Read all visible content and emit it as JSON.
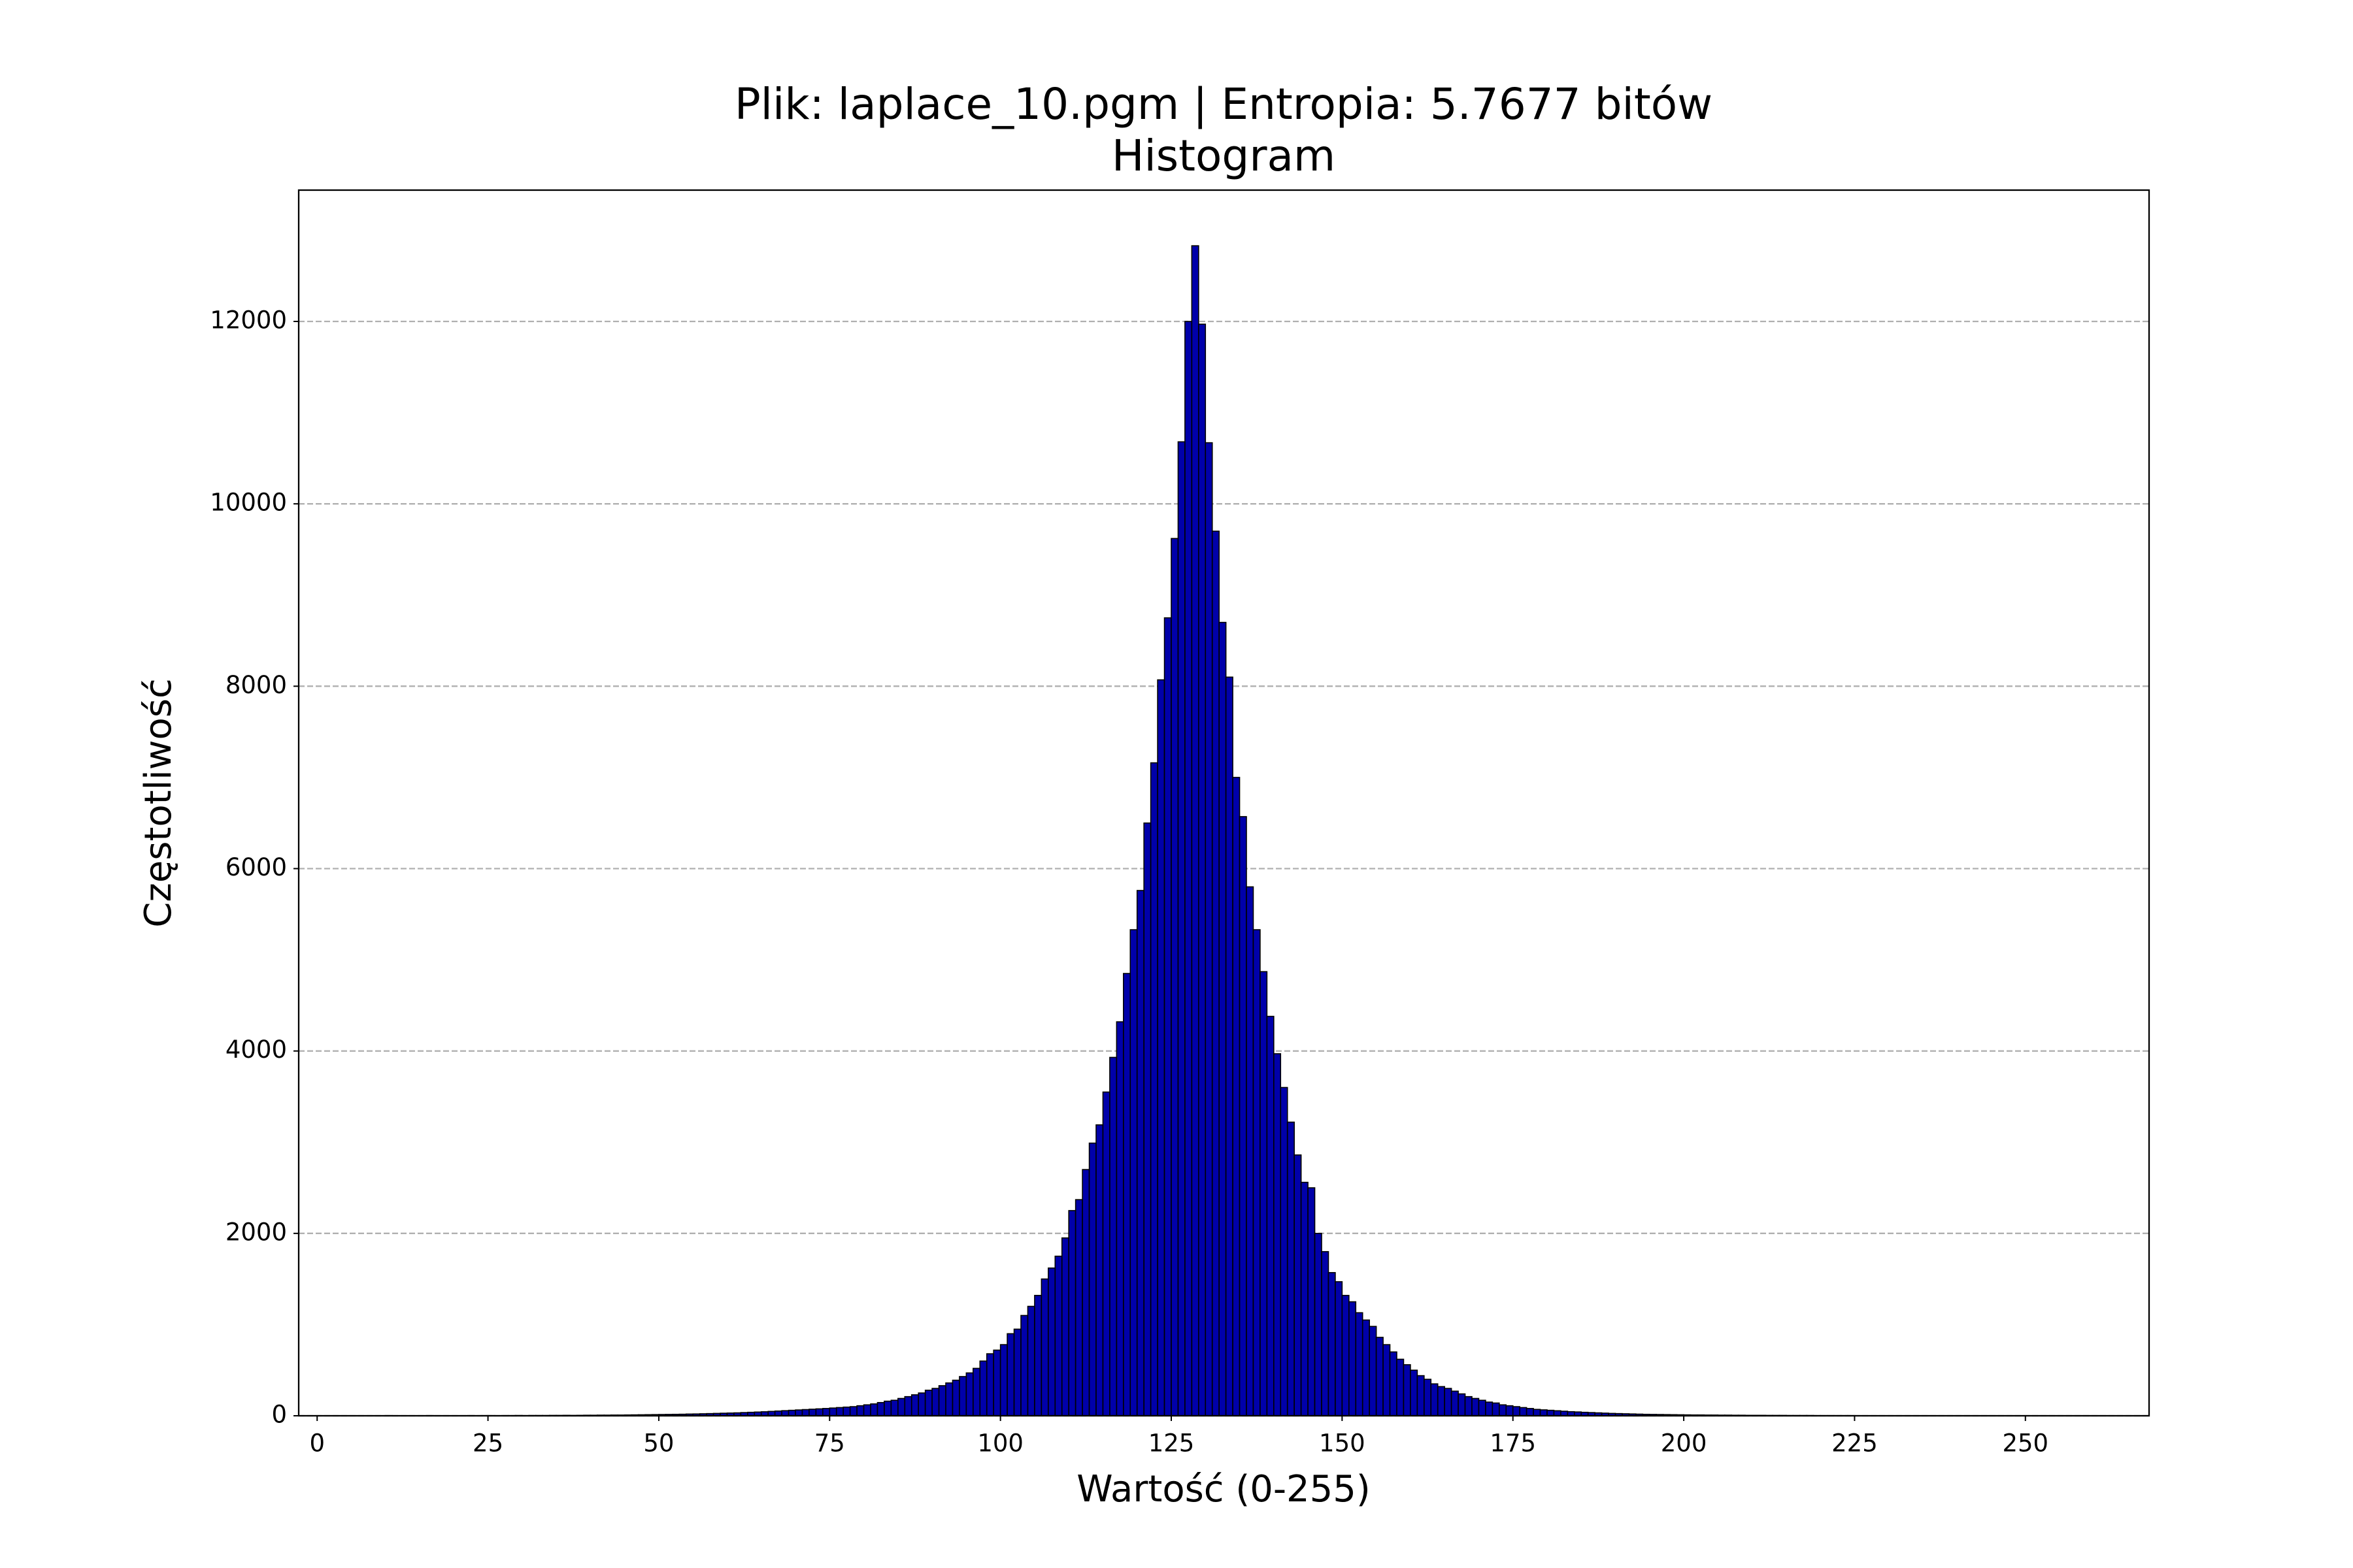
{
  "chart_data": {
    "type": "histogram",
    "title": "Plik: laplace_10.pgm | Entropia: 5.7677 bitów",
    "subtitle": "Histogram",
    "x_label": "Wartość (0-255)",
    "y_label": "Częstotliwość",
    "color": "#0000aa",
    "edgecolor": "#000000",
    "grid": true,
    "bins": [
      0,
      1,
      2,
      3,
      4,
      5,
      6,
      7,
      8,
      9,
      10,
      11,
      12,
      13,
      14,
      15,
      16,
      17,
      18,
      19,
      20,
      21,
      22,
      23,
      24,
      25,
      26,
      27,
      28,
      29,
      30,
      31,
      32,
      33,
      34,
      35,
      36,
      37,
      38,
      39,
      40,
      41,
      42,
      43,
      44,
      45,
      46,
      47,
      48,
      49,
      50,
      51,
      52,
      53,
      54,
      55,
      56,
      57,
      58,
      59,
      60,
      61,
      62,
      63,
      64,
      65,
      66,
      67,
      68,
      69,
      70,
      71,
      72,
      73,
      74,
      75,
      76,
      77,
      78,
      79,
      80,
      81,
      82,
      83,
      84,
      85,
      86,
      87,
      88,
      89,
      90,
      91,
      92,
      93,
      94,
      95,
      96,
      97,
      98,
      99,
      100,
      101,
      102,
      103,
      104,
      105,
      106,
      107,
      108,
      109,
      110,
      111,
      112,
      113,
      114,
      115,
      116,
      117,
      118,
      119,
      120,
      121,
      122,
      123,
      124,
      125,
      126,
      127,
      128,
      129,
      130,
      131,
      132,
      133,
      134,
      135,
      136,
      137,
      138,
      139,
      140,
      141,
      142,
      143,
      144,
      145,
      146,
      147,
      148,
      149,
      150,
      151,
      152,
      153,
      154,
      155,
      156,
      157,
      158,
      159,
      160,
      161,
      162,
      163,
      164,
      165,
      166,
      167,
      168,
      169,
      170,
      171,
      172,
      173,
      174,
      175,
      176,
      177,
      178,
      179,
      180,
      181,
      182,
      183,
      184,
      185,
      186,
      187,
      188,
      189,
      190,
      191,
      192,
      193,
      194,
      195,
      196,
      197,
      198,
      199,
      200,
      201,
      202,
      203,
      204,
      205,
      206,
      207,
      208,
      209,
      210,
      211,
      212,
      213,
      214,
      215,
      216,
      217,
      218,
      219,
      220,
      221,
      222,
      223,
      224,
      225,
      226,
      227,
      228,
      229,
      230,
      231,
      232,
      233,
      234,
      235,
      236,
      237,
      238,
      239,
      240,
      241,
      242,
      243,
      244,
      245,
      246,
      247,
      248,
      249,
      250,
      251,
      252,
      253,
      254,
      255,
      256
    ],
    "values": [
      0,
      0,
      0,
      0,
      0,
      0,
      0,
      0,
      0,
      0,
      2,
      0,
      0,
      1,
      0,
      0,
      2,
      0,
      0,
      1,
      1,
      1,
      2,
      1,
      2,
      2,
      1,
      2,
      2,
      3,
      2,
      3,
      3,
      3,
      4,
      4,
      5,
      4,
      5,
      6,
      6,
      7,
      7,
      8,
      8,
      9,
      10,
      11,
      12,
      13,
      14,
      15,
      16,
      17,
      19,
      20,
      22,
      24,
      26,
      28,
      30,
      32,
      35,
      38,
      41,
      44,
      48,
      52,
      56,
      60,
      64,
      68,
      72,
      76,
      80,
      85,
      90,
      95,
      100,
      110,
      120,
      130,
      145,
      160,
      170,
      190,
      210,
      230,
      250,
      280,
      300,
      330,
      360,
      390,
      430,
      470,
      520,
      600,
      680,
      720,
      780,
      900,
      950,
      1100,
      1200,
      1320,
      1500,
      1620,
      1750,
      1950,
      2250,
      2370,
      2700,
      2990,
      3190,
      3550,
      3930,
      4320,
      4850,
      5330,
      5760,
      6500,
      7160,
      8070,
      8750,
      9620,
      10680,
      12000,
      12830,
      11970,
      10670,
      9700,
      8700,
      8100,
      7000,
      6570,
      5800,
      5330,
      4870,
      4380,
      3970,
      3600,
      3220,
      2860,
      2560,
      2500,
      2000,
      1800,
      1570,
      1470,
      1320,
      1250,
      1130,
      1050,
      980,
      860,
      780,
      700,
      620,
      560,
      500,
      440,
      400,
      350,
      320,
      300,
      270,
      240,
      210,
      190,
      170,
      150,
      140,
      120,
      110,
      100,
      90,
      80,
      70,
      65,
      60,
      55,
      50,
      45,
      42,
      38,
      35,
      32,
      29,
      26,
      24,
      22,
      20,
      18,
      16,
      15,
      14,
      13,
      12,
      11,
      10,
      9,
      9,
      8,
      8,
      7,
      7,
      6,
      6,
      5,
      5,
      5,
      4,
      4,
      4,
      3,
      3,
      3,
      3,
      2,
      2,
      2,
      2,
      2,
      2,
      1,
      1,
      1,
      1,
      1,
      1,
      1,
      1,
      1,
      1,
      1,
      0,
      1,
      0,
      1,
      0,
      1,
      0,
      0,
      1,
      0,
      0,
      1,
      0,
      0,
      0,
      0,
      0,
      1,
      0,
      0
    ],
    "xlim": [
      -2.7,
      268.1
    ],
    "xticks": [
      0,
      25,
      50,
      75,
      100,
      125,
      150,
      175,
      200,
      225,
      250
    ],
    "ylim": [
      0,
      13440
    ],
    "yticks": [
      0,
      2000,
      4000,
      6000,
      8000,
      10000,
      12000
    ]
  }
}
